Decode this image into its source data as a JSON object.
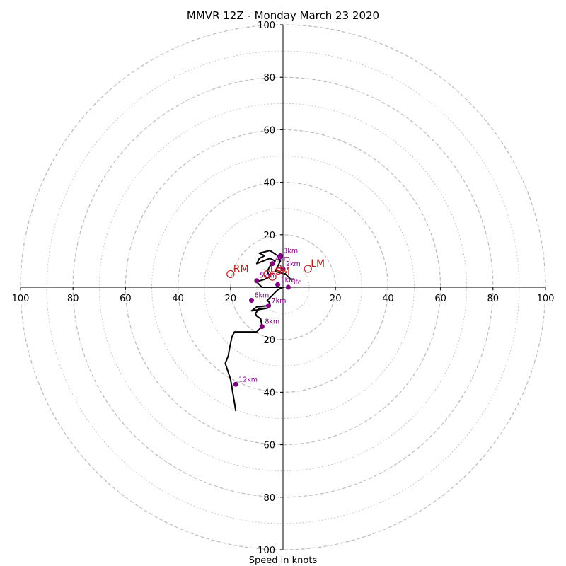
{
  "chart_data": {
    "type": "hodograph",
    "title": "MMVR 12Z - Monday March 23 2020",
    "xlabel": "Speed in knots",
    "range": [
      -100,
      100
    ],
    "ring_major": [
      20,
      40,
      60,
      80,
      100
    ],
    "ring_minor": [
      10,
      30,
      50,
      70,
      90
    ],
    "tick_values": [
      100,
      80,
      60,
      40,
      20
    ],
    "colors": {
      "trace": "#000000",
      "height_marker": "#800080",
      "storm_motion": "#b22222",
      "ring": "#bbbbbb"
    },
    "trace": [
      [
        18,
        -47
      ],
      [
        18.5,
        -44
      ],
      [
        19,
        -41
      ],
      [
        19.5,
        -38
      ],
      [
        20,
        -35
      ],
      [
        21,
        -32
      ],
      [
        22,
        -29
      ],
      [
        20.8,
        -26
      ],
      [
        20.5,
        -24
      ],
      [
        20,
        -21.5
      ],
      [
        19.5,
        -19
      ],
      [
        18.5,
        -17
      ],
      [
        10,
        -17
      ],
      [
        8,
        -15
      ],
      [
        8.5,
        -12
      ],
      [
        10,
        -11
      ],
      [
        10.5,
        -10
      ],
      [
        9,
        -8
      ],
      [
        6,
        -8
      ],
      [
        12,
        -9
      ],
      [
        10,
        -7.5
      ],
      [
        5.5,
        -7
      ],
      [
        5,
        -6
      ],
      [
        6,
        -5
      ],
      [
        4,
        -3
      ],
      [
        2,
        -1
      ],
      [
        0,
        0
      ],
      [
        4,
        0
      ],
      [
        8,
        0
      ],
      [
        10,
        2
      ],
      [
        10.5,
        2
      ],
      [
        7,
        3
      ],
      [
        5,
        4
      ],
      [
        6,
        6
      ],
      [
        5,
        8
      ],
      [
        3,
        10
      ],
      [
        5,
        11
      ],
      [
        10,
        9
      ],
      [
        9,
        11
      ],
      [
        7,
        12
      ],
      [
        9,
        13
      ],
      [
        5,
        14
      ],
      [
        2,
        12
      ],
      [
        1,
        10
      ],
      [
        2,
        8
      ],
      [
        3,
        6
      ],
      [
        -1,
        5
      ],
      [
        -3,
        3
      ]
    ],
    "height_labels": [
      {
        "label": "Sfc",
        "u": -2,
        "v": 0
      },
      {
        "label": "1km",
        "u": 2,
        "v": 1
      },
      {
        "label": "2km",
        "u": 0,
        "v": 7
      },
      {
        "label": "3km",
        "u": 1,
        "v": 12
      },
      {
        "label": "4km",
        "u": 4,
        "v": 9
      },
      {
        "label": "5km",
        "u": 10,
        "v": 2.5
      },
      {
        "label": "6km",
        "u": 12,
        "v": -5
      },
      {
        "label": "7km",
        "u": 5.5,
        "v": -7
      },
      {
        "label": "8km",
        "u": 8,
        "v": -15
      },
      {
        "label": "12km",
        "u": 18,
        "v": -37
      }
    ],
    "storm_motions": [
      {
        "label": "RM",
        "u": 20,
        "v": 5
      },
      {
        "label": "LM",
        "u": -9.5,
        "v": 7
      },
      {
        "label": "LB",
        "u": 6,
        "v": 5
      },
      {
        "label": "SM",
        "u": 4,
        "v": 4
      }
    ]
  }
}
